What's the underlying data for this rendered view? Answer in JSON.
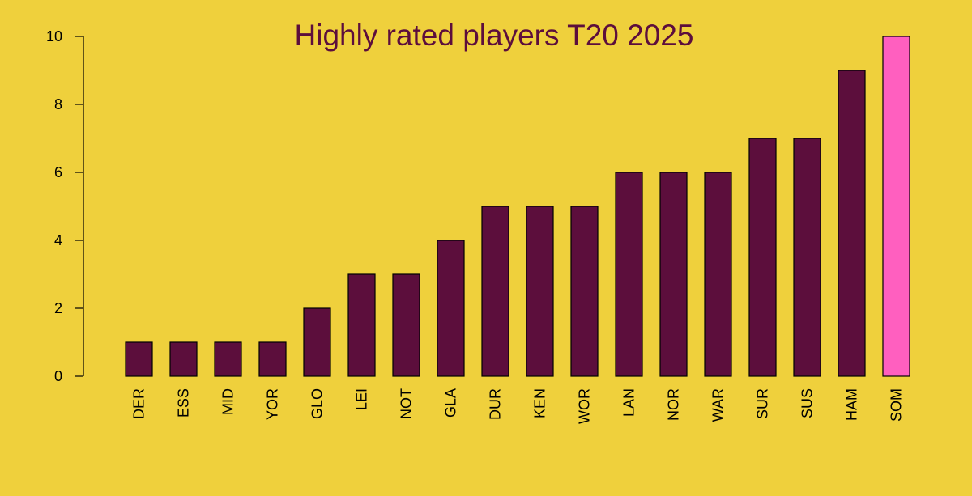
{
  "colors": {
    "background": "#efd03c",
    "bar": "#5c0e3c",
    "highlight": "#ff5fbf",
    "title": "#5c0e3c"
  },
  "chart_data": {
    "type": "bar",
    "title": "Highly rated players T20 2025",
    "xlabel": "",
    "ylabel": "",
    "ylim": [
      0,
      10
    ],
    "yticks": [
      0,
      2,
      4,
      6,
      8,
      10
    ],
    "categories": [
      "DER",
      "ESS",
      "MID",
      "YOR",
      "GLO",
      "LEI",
      "NOT",
      "GLA",
      "DUR",
      "KEN",
      "WOR",
      "LAN",
      "NOR",
      "WAR",
      "SUR",
      "SUS",
      "HAM",
      "SOM"
    ],
    "values": [
      1,
      1,
      1,
      1,
      2,
      3,
      3,
      4,
      5,
      5,
      5,
      6,
      6,
      6,
      7,
      7,
      9,
      10
    ],
    "highlighted_category": "SOM",
    "grid": false
  }
}
